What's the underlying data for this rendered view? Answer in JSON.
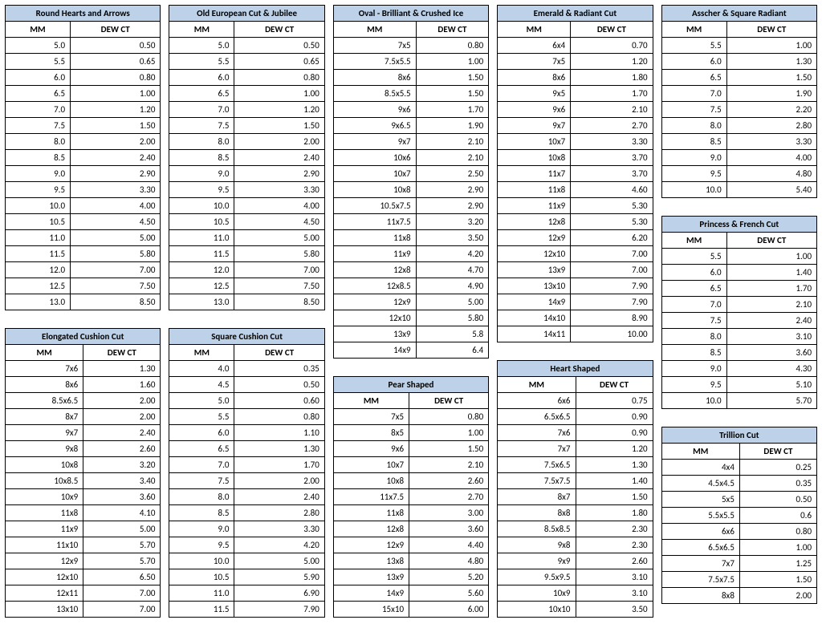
{
  "col_headers": [
    "MM",
    "DEW CT"
  ],
  "tables": {
    "round": {
      "title": "Round Hearts and Arrows",
      "rows": [
        [
          "5.0",
          "0.50"
        ],
        [
          "5.5",
          "0.65"
        ],
        [
          "6.0",
          "0.80"
        ],
        [
          "6.5",
          "1.00"
        ],
        [
          "7.0",
          "1.20"
        ],
        [
          "7.5",
          "1.50"
        ],
        [
          "8.0",
          "2.00"
        ],
        [
          "8.5",
          "2.40"
        ],
        [
          "9.0",
          "2.90"
        ],
        [
          "9.5",
          "3.30"
        ],
        [
          "10.0",
          "4.00"
        ],
        [
          "10.5",
          "4.50"
        ],
        [
          "11.0",
          "5.00"
        ],
        [
          "11.5",
          "5.80"
        ],
        [
          "12.0",
          "7.00"
        ],
        [
          "12.5",
          "7.50"
        ],
        [
          "13.0",
          "8.50"
        ]
      ]
    },
    "elongated": {
      "title": "Elongated Cushion Cut",
      "rows": [
        [
          "7x6",
          "1.30"
        ],
        [
          "8x6",
          "1.60"
        ],
        [
          "8.5x6.5",
          "2.00"
        ],
        [
          "8x7",
          "2.00"
        ],
        [
          "9x7",
          "2.40"
        ],
        [
          "9x8",
          "2.60"
        ],
        [
          "10x8",
          "3.20"
        ],
        [
          "10x8.5",
          "3.40"
        ],
        [
          "10x9",
          "3.60"
        ],
        [
          "11x8",
          "4.10"
        ],
        [
          "11x9",
          "5.00"
        ],
        [
          "11x10",
          "5.70"
        ],
        [
          "12x9",
          "5.70"
        ],
        [
          "12x10",
          "6.50"
        ],
        [
          "12x11",
          "7.00"
        ],
        [
          "13x10",
          "7.00"
        ]
      ]
    },
    "oec": {
      "title": "Old European Cut & Jubilee",
      "rows": [
        [
          "5.0",
          "0.50"
        ],
        [
          "5.5",
          "0.65"
        ],
        [
          "6.0",
          "0.80"
        ],
        [
          "6.5",
          "1.00"
        ],
        [
          "7.0",
          "1.20"
        ],
        [
          "7.5",
          "1.50"
        ],
        [
          "8.0",
          "2.00"
        ],
        [
          "8.5",
          "2.40"
        ],
        [
          "9.0",
          "2.90"
        ],
        [
          "9.5",
          "3.30"
        ],
        [
          "10.0",
          "4.00"
        ],
        [
          "10.5",
          "4.50"
        ],
        [
          "11.0",
          "5.00"
        ],
        [
          "11.5",
          "5.80"
        ],
        [
          "12.0",
          "7.00"
        ],
        [
          "12.5",
          "7.50"
        ],
        [
          "13.0",
          "8.50"
        ]
      ]
    },
    "square_cushion": {
      "title": "Square Cushion Cut",
      "rows": [
        [
          "4.0",
          "0.35"
        ],
        [
          "4.5",
          "0.50"
        ],
        [
          "5.0",
          "0.60"
        ],
        [
          "5.5",
          "0.80"
        ],
        [
          "6.0",
          "1.10"
        ],
        [
          "6.5",
          "1.30"
        ],
        [
          "7.0",
          "1.70"
        ],
        [
          "7.5",
          "2.00"
        ],
        [
          "8.0",
          "2.40"
        ],
        [
          "8.5",
          "2.80"
        ],
        [
          "9.0",
          "3.30"
        ],
        [
          "9.5",
          "4.20"
        ],
        [
          "10.0",
          "5.00"
        ],
        [
          "10.5",
          "5.90"
        ],
        [
          "11.0",
          "6.90"
        ],
        [
          "11.5",
          "7.90"
        ]
      ]
    },
    "oval": {
      "title": "Oval - Brilliant & Crushed Ice",
      "rows": [
        [
          "7x5",
          "0.80"
        ],
        [
          "7.5x5.5",
          "1.00"
        ],
        [
          "8x6",
          "1.50"
        ],
        [
          "8.5x5.5",
          "1.50"
        ],
        [
          "9x6",
          "1.70"
        ],
        [
          "9x6.5",
          "1.90"
        ],
        [
          "9x7",
          "2.10"
        ],
        [
          "10x6",
          "2.10"
        ],
        [
          "10x7",
          "2.50"
        ],
        [
          "10x8",
          "2.90"
        ],
        [
          "10.5x7.5",
          "2.90"
        ],
        [
          "11x7.5",
          "3.20"
        ],
        [
          "11x8",
          "3.50"
        ],
        [
          "11x9",
          "4.20"
        ],
        [
          "12x8",
          "4.70"
        ],
        [
          "12x8.5",
          "4.90"
        ],
        [
          "12x9",
          "5.00"
        ],
        [
          "12x10",
          "5.80"
        ],
        [
          "13x9",
          "5.8"
        ],
        [
          "14x9",
          "6.4"
        ]
      ]
    },
    "pear": {
      "title": "Pear Shaped",
      "rows": [
        [
          "7x5",
          "0.80"
        ],
        [
          "8x5",
          "1.00"
        ],
        [
          "9x6",
          "1.50"
        ],
        [
          "10x7",
          "2.10"
        ],
        [
          "10x8",
          "2.60"
        ],
        [
          "11x7.5",
          "2.70"
        ],
        [
          "11x8",
          "3.00"
        ],
        [
          "12x8",
          "3.60"
        ],
        [
          "12x9",
          "4.40"
        ],
        [
          "13x8",
          "4.80"
        ],
        [
          "13x9",
          "5.20"
        ],
        [
          "14x9",
          "5.60"
        ],
        [
          "15x10",
          "6.00"
        ]
      ]
    },
    "emerald": {
      "title": "Emerald & Radiant Cut",
      "rows": [
        [
          "6x4",
          "0.70"
        ],
        [
          "7x5",
          "1.20"
        ],
        [
          "8x6",
          "1.80"
        ],
        [
          "9x5",
          "1.70"
        ],
        [
          "9x6",
          "2.10"
        ],
        [
          "9x7",
          "2.70"
        ],
        [
          "10x7",
          "3.30"
        ],
        [
          "10x8",
          "3.70"
        ],
        [
          "11x7",
          "3.70"
        ],
        [
          "11x8",
          "4.60"
        ],
        [
          "11x9",
          "5.30"
        ],
        [
          "12x8",
          "5.30"
        ],
        [
          "12x9",
          "6.20"
        ],
        [
          "12x10",
          "7.00"
        ],
        [
          "13x9",
          "7.00"
        ],
        [
          "13x10",
          "7.90"
        ],
        [
          "14x9",
          "7.90"
        ],
        [
          "14x10",
          "8.90"
        ],
        [
          "14x11",
          "10.00"
        ]
      ]
    },
    "heart": {
      "title": "Heart Shaped",
      "rows": [
        [
          "6x6",
          "0.75"
        ],
        [
          "6.5x6.5",
          "0.90"
        ],
        [
          "7x6",
          "0.90"
        ],
        [
          "7x7",
          "1.20"
        ],
        [
          "7.5x6.5",
          "1.30"
        ],
        [
          "7.5x7.5",
          "1.40"
        ],
        [
          "8x7",
          "1.50"
        ],
        [
          "8x8",
          "1.80"
        ],
        [
          "8.5x8.5",
          "2.30"
        ],
        [
          "9x8",
          "2.30"
        ],
        [
          "9x9",
          "2.60"
        ],
        [
          "9.5x9.5",
          "3.10"
        ],
        [
          "10x9",
          "3.10"
        ],
        [
          "10x10",
          "3.50"
        ]
      ]
    },
    "asscher": {
      "title": "Asscher & Square Radiant",
      "rows": [
        [
          "5.5",
          "1.00"
        ],
        [
          "6.0",
          "1.30"
        ],
        [
          "6.5",
          "1.50"
        ],
        [
          "7.0",
          "1.90"
        ],
        [
          "7.5",
          "2.20"
        ],
        [
          "8.0",
          "2.80"
        ],
        [
          "8.5",
          "3.30"
        ],
        [
          "9.0",
          "4.00"
        ],
        [
          "9.5",
          "4.80"
        ],
        [
          "10.0",
          "5.40"
        ]
      ]
    },
    "princess": {
      "title": "Princess & French Cut",
      "rows": [
        [
          "5.5",
          "1.00"
        ],
        [
          "6.0",
          "1.40"
        ],
        [
          "6.5",
          "1.70"
        ],
        [
          "7.0",
          "2.10"
        ],
        [
          "7.5",
          "2.40"
        ],
        [
          "8.0",
          "3.10"
        ],
        [
          "8.5",
          "3.60"
        ],
        [
          "9.0",
          "4.30"
        ],
        [
          "9.5",
          "5.10"
        ],
        [
          "10.0",
          "5.70"
        ]
      ]
    },
    "trillion": {
      "title": "Trillion Cut",
      "rows": [
        [
          "4x4",
          "0.25"
        ],
        [
          "4.5x4.5",
          "0.35"
        ],
        [
          "5x5",
          "0.50"
        ],
        [
          "5.5x5.5",
          "0.6"
        ],
        [
          "6x6",
          "0.80"
        ],
        [
          "6.5x6.5",
          "1.00"
        ],
        [
          "7x7",
          "1.25"
        ],
        [
          "7.5x7.5",
          "1.50"
        ],
        [
          "8x8",
          "2.00"
        ]
      ]
    }
  }
}
